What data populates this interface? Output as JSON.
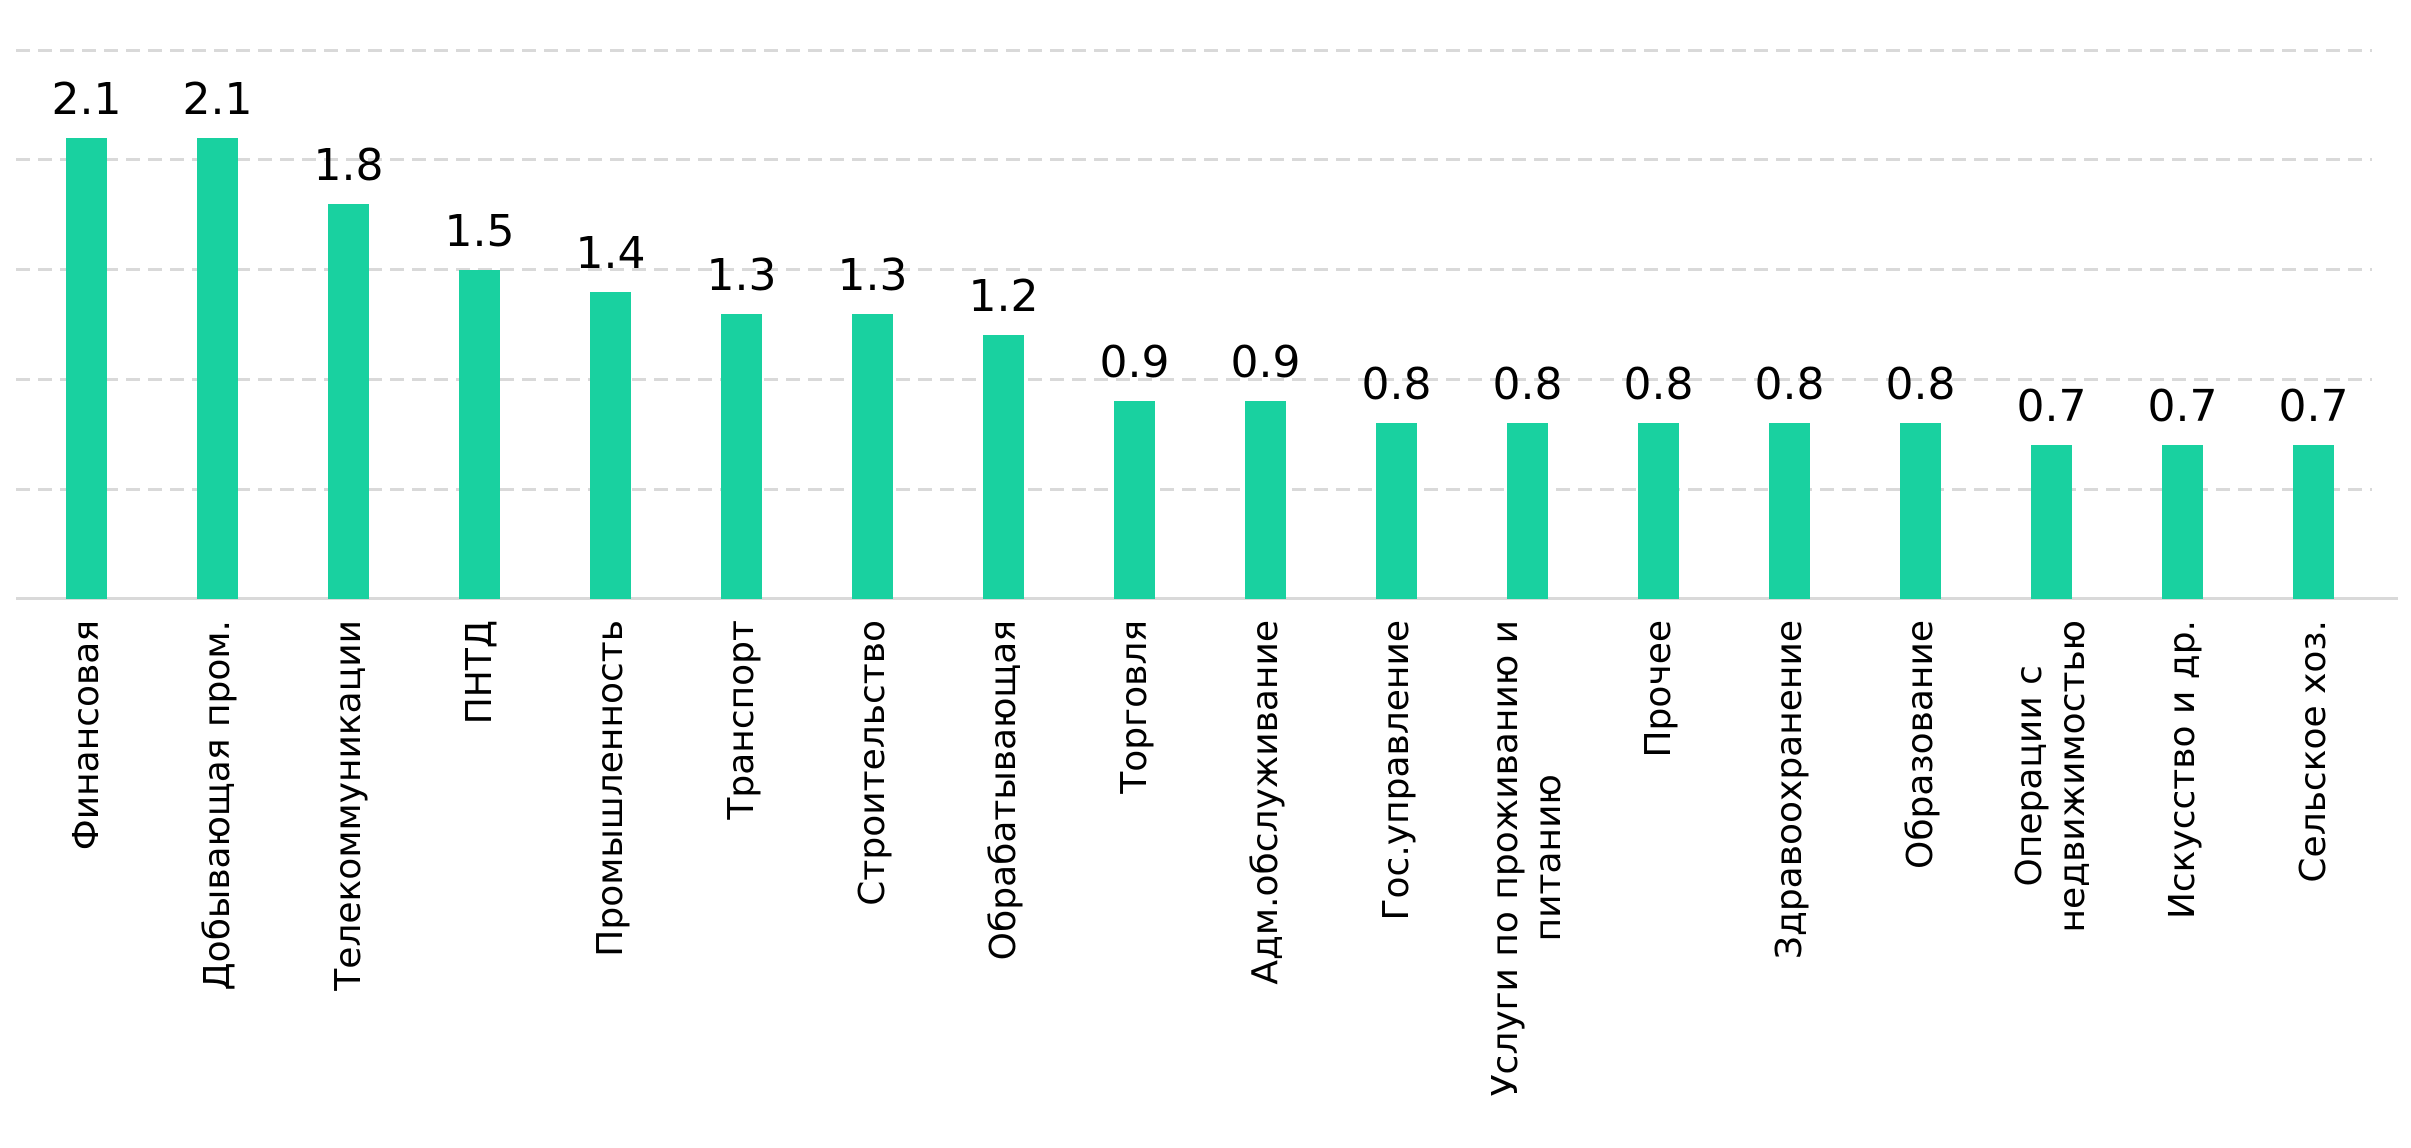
{
  "chart_data": {
    "type": "bar",
    "title": "",
    "xlabel": "",
    "ylabel": "",
    "categories": [
      "Финансовая",
      "Добывающая пром.",
      "Телекоммуникации",
      "ПНТД",
      "Промышленность",
      "Транспорт",
      "Строительство",
      "Обрабатывающая",
      "Торговля",
      "Адм.обслуживание",
      "Гос.управление",
      "Услуги по проживанию и\nпитанию",
      "Прочее",
      "Здравоохранение",
      "Образование",
      "Операции с\nнедвижимостью",
      "Искусство и др.",
      "Сельское хоз."
    ],
    "values": [
      2.1,
      2.1,
      1.8,
      1.5,
      1.4,
      1.3,
      1.3,
      1.2,
      0.9,
      0.9,
      0.8,
      0.8,
      0.8,
      0.8,
      0.8,
      0.7,
      0.7,
      0.7
    ],
    "ylim": [
      0,
      2.5
    ],
    "gridline_values": [
      0.5,
      1.0,
      1.5,
      2.0,
      2.5
    ],
    "grid_style": "horizontal-dashed",
    "legend": "none",
    "bar_color": "#19D1A0",
    "grid_color": "#d9d9d9",
    "axis_line_color": "#d9d9d9",
    "text_color": "#000000"
  }
}
